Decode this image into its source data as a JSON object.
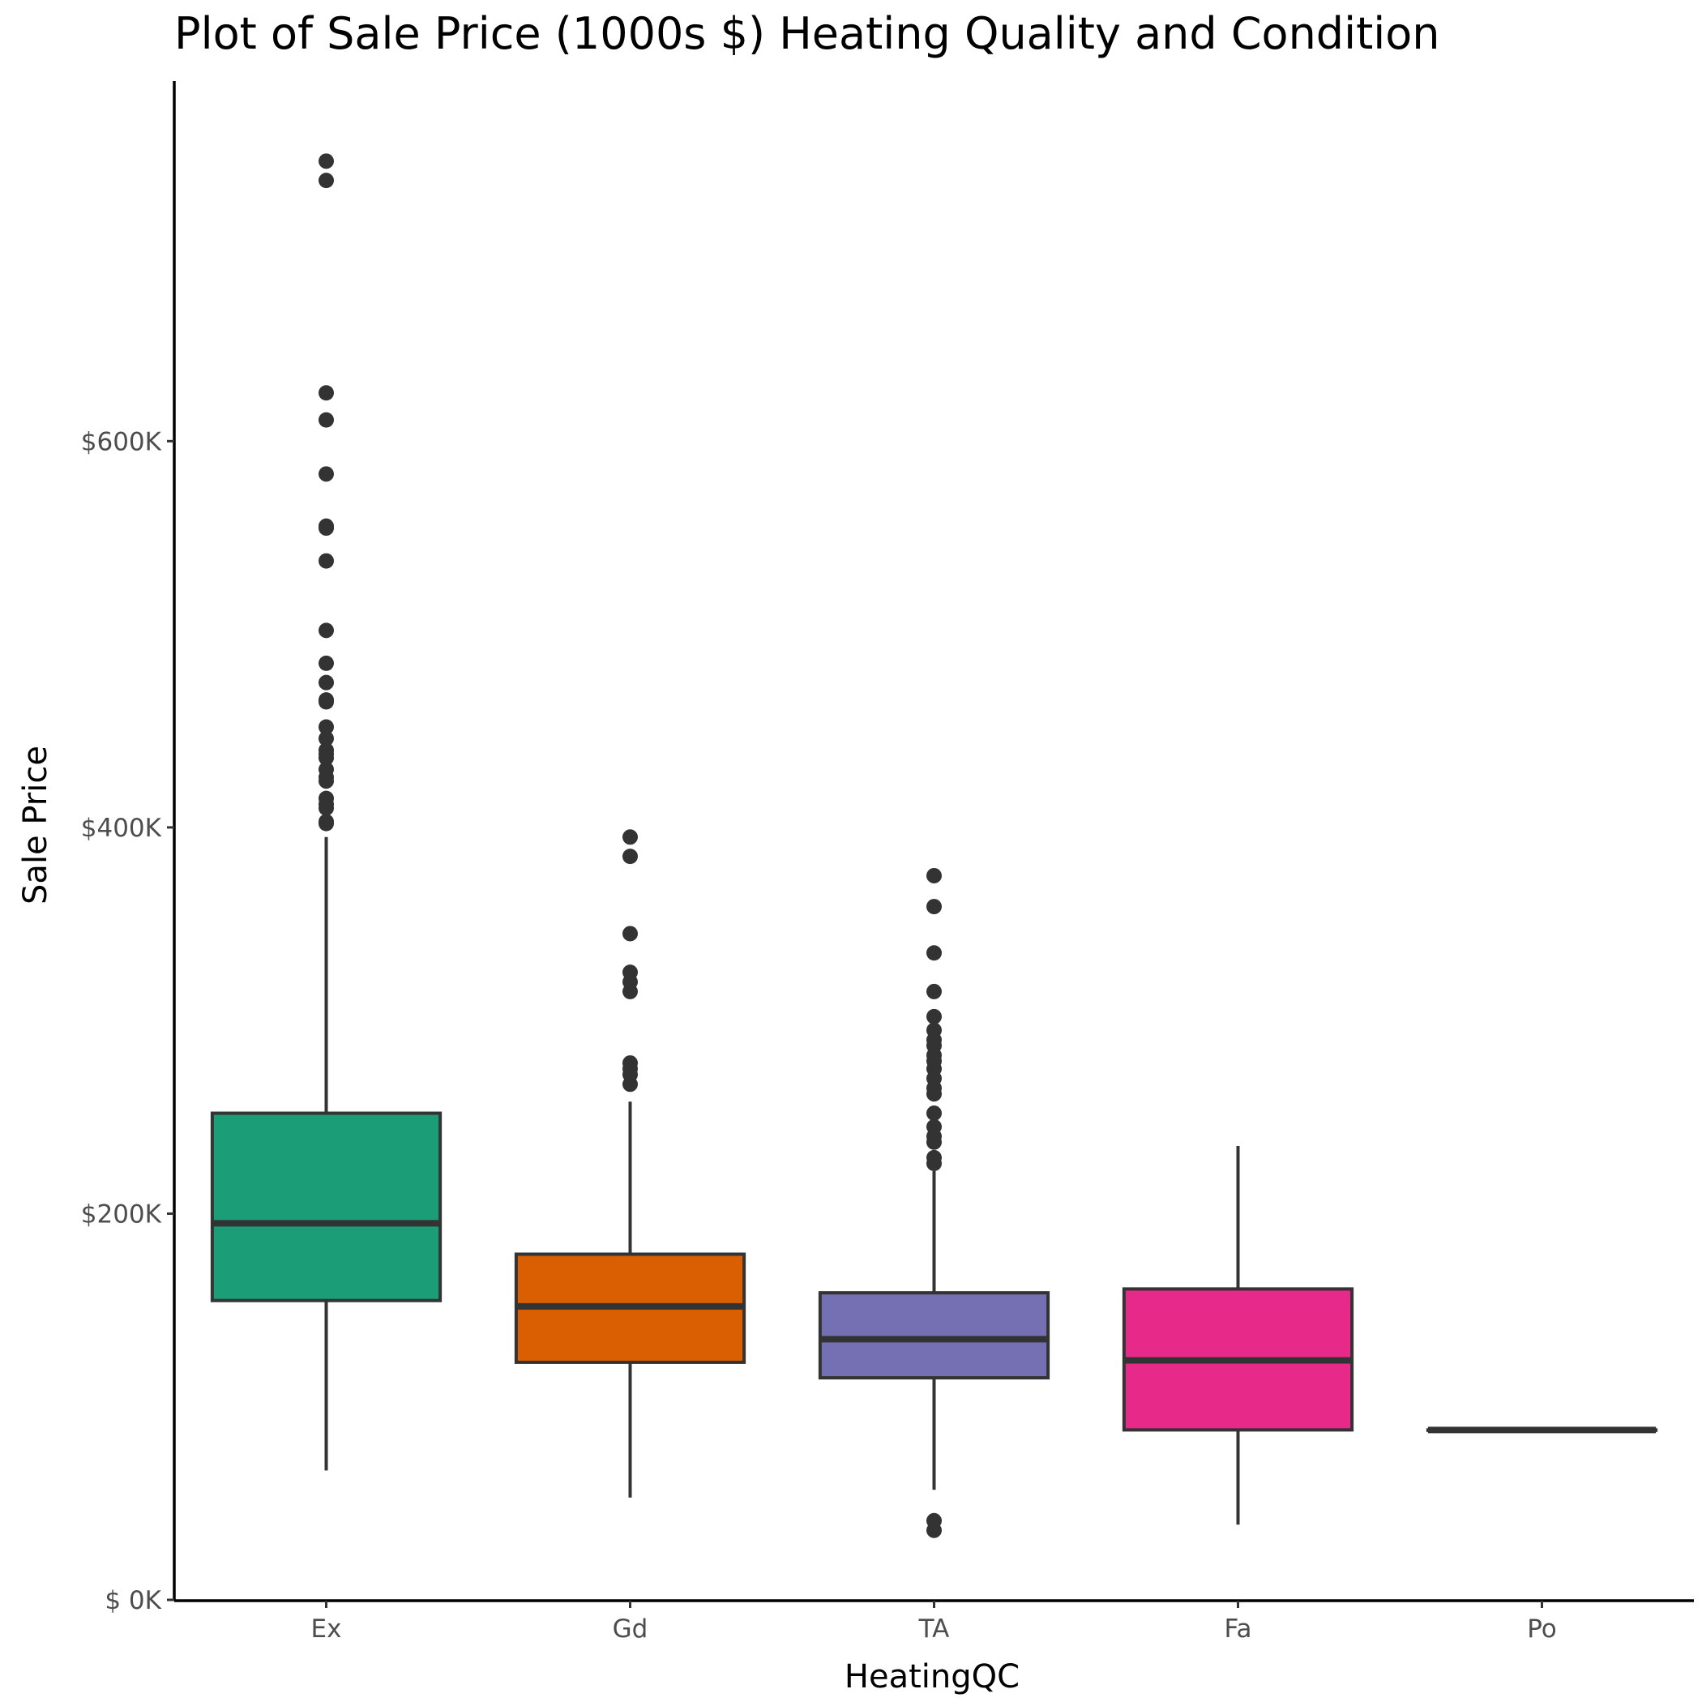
{
  "chart_data": {
    "type": "box",
    "title": "Plot of Sale Price (1000s $) Heating Quality and Condition",
    "xlabel": "HeatingQC",
    "ylabel": "Sale Price",
    "ylim": [
      0,
      755
    ],
    "yticks": [
      {
        "value": 0,
        "label": "$  0K"
      },
      {
        "value": 200,
        "label": "$200K"
      },
      {
        "value": 400,
        "label": "$400K"
      },
      {
        "value": 600,
        "label": "$600K"
      }
    ],
    "grid": false,
    "legend": "none",
    "categories": [
      "Ex",
      "Gd",
      "TA",
      "Fa",
      "Po"
    ],
    "boxes": [
      {
        "category": "Ex",
        "color": "#1b9e77",
        "lower_whisker": 67,
        "q1": 155,
        "median": 195,
        "q3": 252,
        "upper_whisker": 395,
        "outliers": [
          745,
          735,
          625,
          611,
          583,
          556,
          555,
          538,
          502,
          485,
          475,
          466,
          465,
          452,
          446,
          440,
          438,
          436,
          430,
          426,
          424,
          415,
          412,
          410,
          403,
          402
        ]
      },
      {
        "category": "Gd",
        "color": "#d95f02",
        "lower_whisker": 53,
        "q1": 123,
        "median": 152,
        "q3": 179,
        "upper_whisker": 258,
        "outliers": [
          395,
          385,
          345,
          325,
          320,
          315,
          278,
          275,
          272,
          267
        ]
      },
      {
        "category": "TA",
        "color": "#7570b3",
        "lower_whisker": 57,
        "q1": 115,
        "median": 135,
        "q3": 159,
        "upper_whisker": 222,
        "outliers": [
          375,
          359,
          335,
          315,
          302,
          295,
          290,
          287,
          282,
          279,
          275,
          270,
          265,
          262,
          252,
          245,
          240,
          237,
          229,
          226,
          41,
          36
        ]
      },
      {
        "category": "Fa",
        "color": "#e7298a",
        "lower_whisker": 39,
        "q1": 88,
        "median": 124,
        "q3": 161,
        "upper_whisker": 235,
        "outliers": []
      },
      {
        "category": "Po",
        "color": "#66a61e",
        "lower_whisker": 88,
        "q1": 88,
        "median": 88,
        "q3": 88,
        "upper_whisker": 88,
        "outliers": []
      }
    ]
  }
}
